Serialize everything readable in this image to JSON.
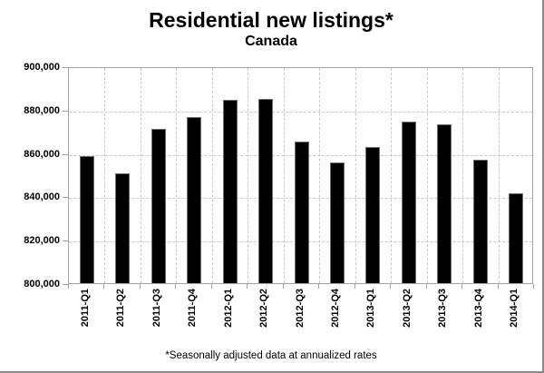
{
  "window": {
    "background": "#ffffff",
    "edge_border_color": "#8a8a8a"
  },
  "chart_data": {
    "type": "bar",
    "title": "Residential new listings*",
    "subtitle": "Canada",
    "footnote": "*Seasonally adjusted data at annualized rates",
    "categories": [
      "2011-Q1",
      "2011-Q2",
      "2011-Q3",
      "2011-Q4",
      "2012-Q1",
      "2012-Q2",
      "2012-Q3",
      "2012-Q4",
      "2013-Q1",
      "2013-Q2",
      "2013-Q3",
      "2013-Q4",
      "2014-Q1"
    ],
    "values": [
      859000,
      851000,
      871500,
      877000,
      885000,
      885500,
      865500,
      856000,
      863000,
      875000,
      873500,
      857000,
      841500
    ],
    "xlabel": "",
    "ylabel": "",
    "ylim": [
      800000,
      900000
    ],
    "ytick_interval": 20000,
    "ytick_labels_top_to_bottom": [
      "900,000",
      "880,000",
      "860,000",
      "840,000",
      "820,000",
      "800,000"
    ],
    "grid": "dashed horizontal at y-ticks and dashed vertical between categories",
    "legend": "none",
    "bar_color": "#000000",
    "axis_color": "#a3a3a3",
    "gridline_color": "#c9c9c9"
  }
}
